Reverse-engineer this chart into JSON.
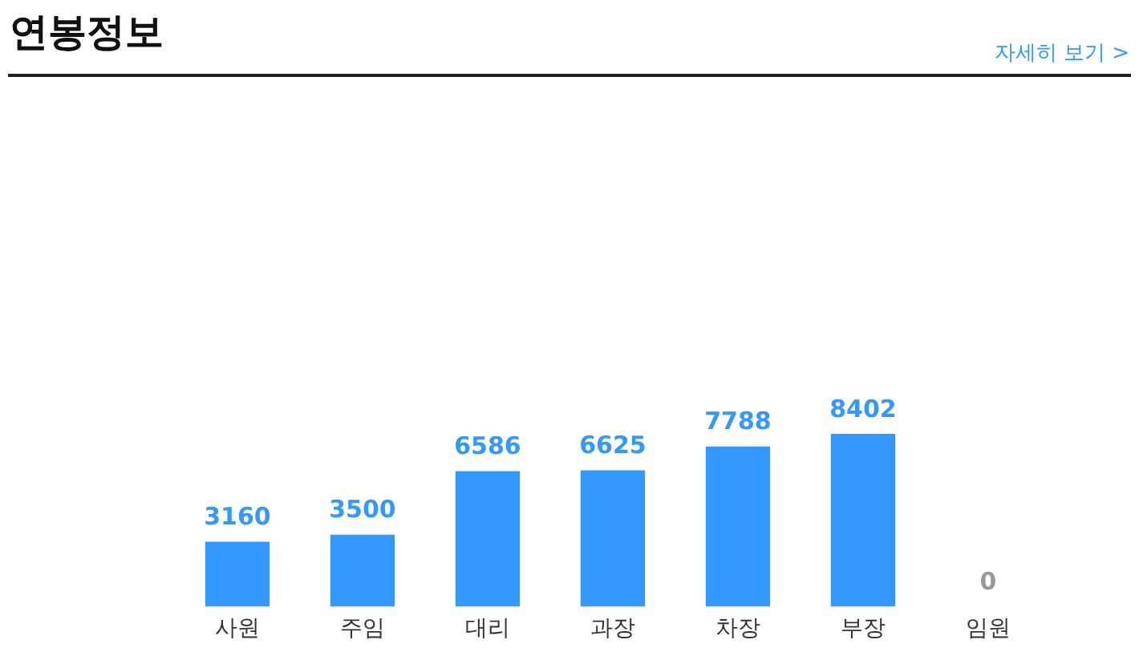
{
  "chart_data": {
    "type": "bar",
    "title": "연봉정보",
    "annotations": [
      "자세히 보기 >"
    ],
    "categories": [
      "사원",
      "주임",
      "대리",
      "과장",
      "차장",
      "부장",
      "임원"
    ],
    "values": [
      3160,
      3500,
      6586,
      6625,
      7788,
      8402,
      0
    ],
    "colors": [
      "#3399ff",
      "#3399ff",
      "#3399ff",
      "#3399ff",
      "#3399ff",
      "#3399ff",
      "#999999"
    ],
    "data_labels": true,
    "grid": false,
    "legend": false,
    "tick_labels": "x"
  }
}
